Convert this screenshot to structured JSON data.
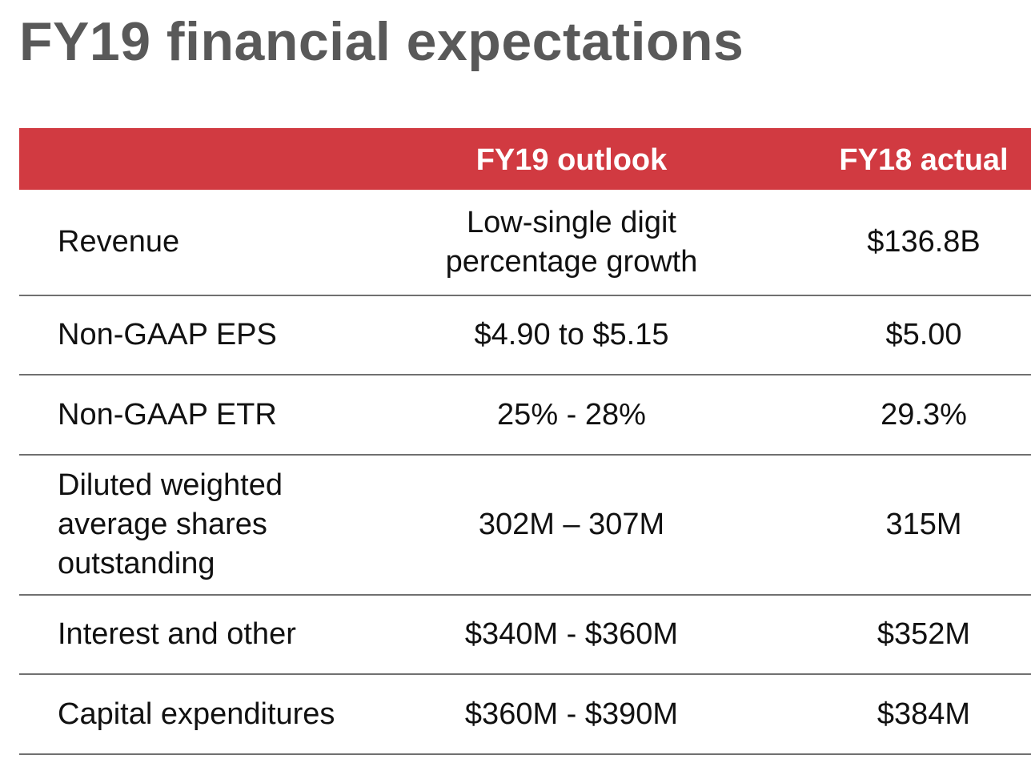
{
  "title": "FY19 financial expectations",
  "table": {
    "headers": {
      "metric": "",
      "outlook": "FY19 outlook",
      "actual": "FY18 actual"
    },
    "rows": [
      {
        "metric": "Revenue",
        "outlook": "Low-single digit\npercentage growth",
        "actual": "$136.8B"
      },
      {
        "metric": "Non-GAAP EPS",
        "outlook": "$4.90 to $5.15",
        "actual": "$5.00"
      },
      {
        "metric": "Non-GAAP ETR",
        "outlook": "25% - 28%",
        "actual": "29.3%"
      },
      {
        "metric": "Diluted weighted\naverage shares\noutstanding",
        "outlook": "302M – 307M",
        "actual": "315M"
      },
      {
        "metric": "Interest and other",
        "outlook": "$340M - $360M",
        "actual": "$352M"
      },
      {
        "metric": "Capital expenditures",
        "outlook": "$360M - $390M",
        "actual": "$384M"
      }
    ]
  },
  "colors": {
    "header_background": "#d13a41",
    "header_text": "#ffffff",
    "title_text": "#595959",
    "row_divider": "#707070"
  }
}
